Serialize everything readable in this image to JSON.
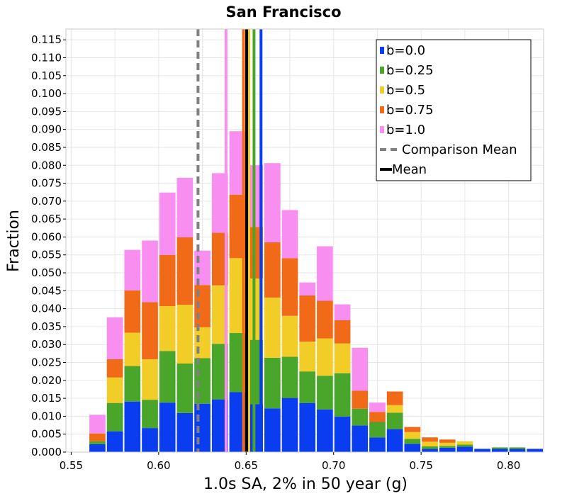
{
  "chart_data": {
    "type": "bar",
    "title": "San Francisco",
    "xlabel": "1.0s SA, 2% in 50 year (g)",
    "ylabel": "Fraction",
    "xlim": [
      0.547,
      0.82
    ],
    "ylim": [
      0.0,
      0.118
    ],
    "bin_width": 0.01,
    "stacked": true,
    "grid": true,
    "legend_position": "top-right",
    "x_ticks": [
      "0.55",
      "0.60",
      "0.65",
      "0.70",
      "0.75",
      "0.80"
    ],
    "x_tick_values": [
      0.55,
      0.6,
      0.65,
      0.7,
      0.75,
      0.8
    ],
    "y_ticks": [
      "0.000",
      "0.005",
      "0.010",
      "0.015",
      "0.020",
      "0.025",
      "0.030",
      "0.035",
      "0.040",
      "0.045",
      "0.050",
      "0.055",
      "0.060",
      "0.065",
      "0.070",
      "0.075",
      "0.080",
      "0.085",
      "0.090",
      "0.095",
      "0.100",
      "0.105",
      "0.110",
      "0.115"
    ],
    "y_tick_values": [
      0,
      0.005,
      0.01,
      0.015,
      0.02,
      0.025,
      0.03,
      0.035,
      0.04,
      0.045,
      0.05,
      0.055,
      0.06,
      0.065,
      0.07,
      0.075,
      0.08,
      0.085,
      0.09,
      0.095,
      0.1,
      0.105,
      0.11,
      0.115
    ],
    "x_bin_starts": [
      0.56,
      0.57,
      0.58,
      0.59,
      0.6,
      0.61,
      0.62,
      0.63,
      0.64,
      0.65,
      0.66,
      0.67,
      0.68,
      0.69,
      0.7,
      0.71,
      0.72,
      0.73,
      0.74,
      0.75,
      0.76,
      0.77,
      0.78,
      0.79,
      0.8,
      0.81
    ],
    "series": [
      {
        "name": "b=0.0",
        "color": "#0a3cf0",
        "values": [
          0.0022,
          0.0058,
          0.0141,
          0.0067,
          0.0138,
          0.0109,
          0.0135,
          0.0147,
          0.0167,
          0.0134,
          0.0122,
          0.0151,
          0.0137,
          0.0119,
          0.0099,
          0.0074,
          0.0041,
          0.0064,
          0.0023,
          0.0009,
          0.0012,
          0.0015,
          0.0009,
          0.0009,
          0.0009,
          0.0009
        ]
      },
      {
        "name": "b=0.25",
        "color": "#4aa62a",
        "values": [
          0.0008,
          0.0079,
          0.0099,
          0.0079,
          0.0144,
          0.0138,
          0.0127,
          0.0155,
          0.0165,
          0.0179,
          0.0141,
          0.0115,
          0.0088,
          0.0094,
          0.0121,
          0.0047,
          0.0043,
          0.0046,
          0.0014,
          0.0007,
          0.0005,
          0.0006,
          0.0,
          0.0004,
          0.0004,
          0.0
        ]
      },
      {
        "name": "b=0.5",
        "color": "#f2cc27",
        "values": [
          0.0,
          0.0071,
          0.0093,
          0.0113,
          0.0125,
          0.0164,
          0.0086,
          0.0163,
          0.0209,
          0.0171,
          0.0168,
          0.0114,
          0.0083,
          0.0104,
          0.0083,
          0.0,
          0.0,
          0.0021,
          0.0019,
          0.0013,
          0.0009,
          0.0009,
          0.0,
          0.0,
          0.0,
          0.0
        ]
      },
      {
        "name": "b=0.75",
        "color": "#f06a18",
        "values": [
          0.0022,
          0.0051,
          0.0118,
          0.0159,
          0.0143,
          0.0188,
          0.0118,
          0.0147,
          0.0177,
          0.0144,
          0.0154,
          0.0161,
          0.0129,
          0.0105,
          0.0065,
          0.005,
          0.0028,
          0.0038,
          0.0014,
          0.0012,
          0.0009,
          0.0,
          0.0,
          0.0,
          0.0,
          0.0
        ]
      },
      {
        "name": "b=1.0",
        "color": "#f78ef0",
        "values": [
          0.0052,
          0.0117,
          0.0113,
          0.0172,
          0.0174,
          0.0166,
          0.0096,
          0.0166,
          0.0177,
          0.0172,
          0.0221,
          0.0134,
          0.0036,
          0.0152,
          0.0044,
          0.012,
          0.0026,
          0.0,
          0.0,
          0.0,
          0.0,
          0.0,
          0.0,
          0.0,
          0.0,
          0.0
        ]
      }
    ],
    "reference_lines": [
      {
        "name": "Comparison Mean",
        "x": 0.6225,
        "color": "#808080",
        "style": "dashed"
      },
      {
        "name": "Mean",
        "x": 0.6503,
        "color": "#000000",
        "style": "solid"
      }
    ],
    "series_mean_lines": [
      {
        "series": "b=0.0",
        "x": 0.6585,
        "color": "#0a3cf0"
      },
      {
        "series": "b=0.25",
        "x": 0.6545,
        "color": "#4aa62a"
      },
      {
        "series": "b=0.5",
        "x": 0.6515,
        "color": "#f2cc27"
      },
      {
        "series": "b=0.75",
        "x": 0.6485,
        "color": "#f06a18"
      },
      {
        "series": "b=1.0",
        "x": 0.6385,
        "color": "#f78ef0"
      }
    ]
  }
}
